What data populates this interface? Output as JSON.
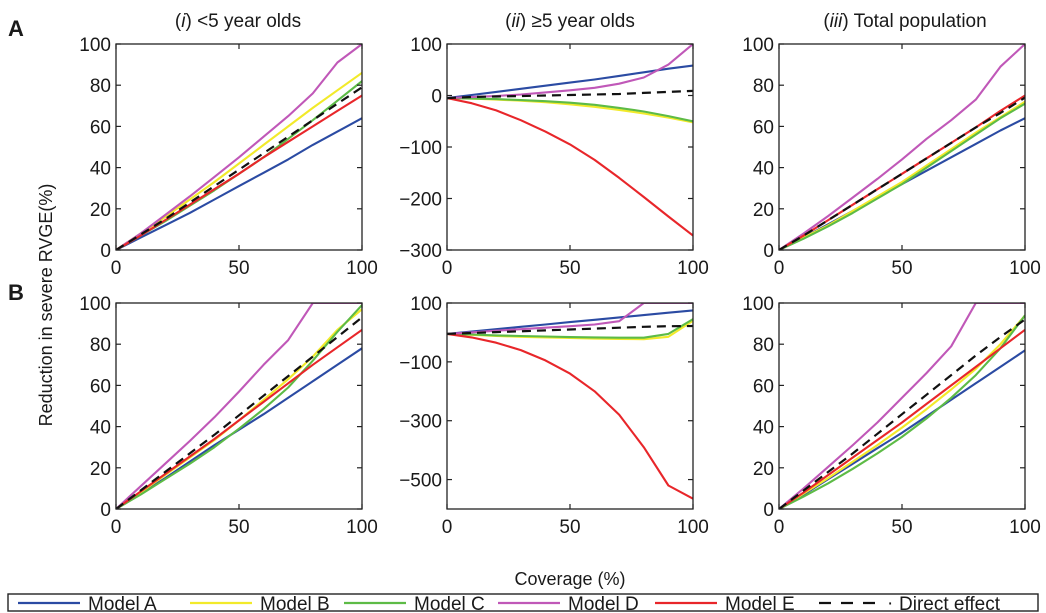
{
  "figure": {
    "row_labels": [
      "A",
      "B"
    ],
    "column_titles": [
      {
        "roman": "i",
        "text": "<5 year olds"
      },
      {
        "roman": "ii",
        "text": "≥5 year olds"
      },
      {
        "roman": "iii",
        "text": "Total population"
      }
    ],
    "ylabel": "Reduction in severe RVGE(%)",
    "xlabel": "Coverage (%)"
  },
  "legend": {
    "items": [
      {
        "label": "Model A",
        "color": "#2B4BA3",
        "dash": "solid"
      },
      {
        "label": "Model B",
        "color": "#F2EA2A",
        "dash": "solid"
      },
      {
        "label": "Model C",
        "color": "#5DBB46",
        "dash": "solid"
      },
      {
        "label": "Model D",
        "color": "#C058B8",
        "dash": "solid"
      },
      {
        "label": "Model E",
        "color": "#E8262A",
        "dash": "solid"
      },
      {
        "label": "Direct effect",
        "color": "#111111",
        "dash": "dashed"
      }
    ]
  },
  "chart_data": [
    {
      "type": "line",
      "row": "A",
      "column": "i",
      "x": [
        0,
        10,
        20,
        30,
        40,
        50,
        60,
        70,
        80,
        90,
        100
      ],
      "xlim": [
        0,
        100
      ],
      "xticks": [
        0,
        50,
        100
      ],
      "ylim": [
        0,
        100
      ],
      "yticks": [
        0,
        20,
        40,
        60,
        80,
        100
      ],
      "series": [
        {
          "name": "Model A",
          "values": [
            0,
            6,
            12,
            18,
            24.5,
            31,
            37.5,
            44,
            51,
            57.5,
            64
          ]
        },
        {
          "name": "Model B",
          "values": [
            0,
            8,
            16,
            24.5,
            33,
            42,
            51,
            60,
            69,
            77.5,
            86
          ]
        },
        {
          "name": "Model C",
          "values": [
            0,
            7,
            14,
            21.5,
            29,
            37,
            45,
            54,
            63,
            72.5,
            82
          ]
        },
        {
          "name": "Model D",
          "values": [
            0,
            8,
            17,
            26,
            35.5,
            45,
            55,
            65,
            76,
            91,
            100
          ]
        },
        {
          "name": "Model E",
          "values": [
            0,
            7,
            14.5,
            22,
            29.5,
            37,
            45,
            52.5,
            60,
            67.5,
            75
          ]
        },
        {
          "name": "Direct effect",
          "values": [
            0,
            7.5,
            15,
            23,
            31,
            39,
            47,
            55,
            63,
            71,
            79
          ]
        }
      ]
    },
    {
      "type": "line",
      "row": "A",
      "column": "ii",
      "x": [
        0,
        10,
        20,
        30,
        40,
        50,
        60,
        70,
        80,
        90,
        100
      ],
      "xlim": [
        0,
        100
      ],
      "xticks": [
        0,
        50,
        100
      ],
      "ylim": [
        -300,
        100
      ],
      "yticks": [
        -300,
        -200,
        -100,
        0,
        100
      ],
      "series": [
        {
          "name": "Model A",
          "values": [
            -5,
            1,
            7,
            13,
            19,
            25,
            31,
            38,
            45,
            52,
            58
          ]
        },
        {
          "name": "Model B",
          "values": [
            -5,
            -6,
            -8,
            -10,
            -13,
            -17,
            -22,
            -28,
            -35,
            -43,
            -52
          ]
        },
        {
          "name": "Model C",
          "values": [
            -5,
            -6,
            -7,
            -9,
            -11,
            -14,
            -18,
            -24,
            -31,
            -40,
            -50
          ]
        },
        {
          "name": "Model D",
          "values": [
            -5,
            -3,
            -1,
            2,
            6,
            10,
            15,
            23,
            35,
            60,
            100
          ]
        },
        {
          "name": "Model E",
          "values": [
            -5,
            -15,
            -29,
            -48,
            -70,
            -95,
            -125,
            -160,
            -197,
            -235,
            -272
          ]
        },
        {
          "name": "Direct effect",
          "values": [
            -5,
            -3,
            -2,
            -1,
            0,
            1,
            2,
            3,
            5,
            7,
            9
          ]
        }
      ]
    },
    {
      "type": "line",
      "row": "A",
      "column": "iii",
      "x": [
        0,
        10,
        20,
        30,
        40,
        50,
        60,
        70,
        80,
        90,
        100
      ],
      "xlim": [
        0,
        100
      ],
      "xticks": [
        0,
        50,
        100
      ],
      "ylim": [
        0,
        100
      ],
      "yticks": [
        0,
        20,
        40,
        60,
        80,
        100
      ],
      "series": [
        {
          "name": "Model A",
          "values": [
            0,
            6,
            12.5,
            19,
            25.5,
            32,
            38.5,
            45,
            51.5,
            58,
            64
          ]
        },
        {
          "name": "Model B",
          "values": [
            0,
            6,
            12,
            19,
            26,
            33,
            41,
            49,
            57,
            64.5,
            72
          ]
        },
        {
          "name": "Model C",
          "values": [
            0,
            5.5,
            11.5,
            18,
            25,
            32,
            40,
            48,
            56,
            64,
            71
          ]
        },
        {
          "name": "Model D",
          "values": [
            0,
            8,
            16.5,
            25.5,
            34.5,
            44,
            54,
            63,
            73,
            89,
            100
          ]
        },
        {
          "name": "Model E",
          "values": [
            0,
            7,
            14.5,
            22,
            29.5,
            37,
            44.5,
            52,
            59.5,
            67.5,
            75
          ]
        },
        {
          "name": "Direct effect",
          "values": [
            0,
            7,
            14.5,
            22,
            29.5,
            37,
            44.5,
            52,
            59.5,
            66.5,
            74
          ]
        }
      ]
    },
    {
      "type": "line",
      "row": "B",
      "column": "i",
      "x": [
        0,
        10,
        20,
        30,
        40,
        50,
        60,
        70,
        80,
        90,
        100
      ],
      "xlim": [
        0,
        100
      ],
      "xticks": [
        0,
        50,
        100
      ],
      "ylim": [
        0,
        100
      ],
      "yticks": [
        0,
        20,
        40,
        60,
        80,
        100
      ],
      "series": [
        {
          "name": "Model A",
          "values": [
            0,
            7.5,
            15,
            23,
            31,
            38.5,
            46,
            54,
            62,
            70,
            78
          ]
        },
        {
          "name": "Model B",
          "values": [
            0,
            8,
            16.5,
            25,
            33.5,
            43,
            53,
            63,
            74,
            87,
            97
          ]
        },
        {
          "name": "Model C",
          "values": [
            0,
            7,
            14.5,
            22,
            30,
            39,
            48.5,
            59,
            72,
            86,
            99
          ]
        },
        {
          "name": "Model D",
          "values": [
            0,
            11,
            22,
            33,
            44.5,
            57,
            70,
            82,
            100,
            100,
            100
          ]
        },
        {
          "name": "Model E",
          "values": [
            0,
            8.5,
            17,
            25.5,
            34,
            43,
            52,
            61,
            70,
            78.5,
            87
          ]
        },
        {
          "name": "Direct effect",
          "values": [
            0,
            9,
            18,
            27,
            36,
            45.5,
            55,
            64.5,
            74,
            83.5,
            93
          ]
        }
      ]
    },
    {
      "type": "line",
      "row": "B",
      "column": "ii",
      "x": [
        0,
        10,
        20,
        30,
        40,
        50,
        60,
        70,
        80,
        90,
        100
      ],
      "xlim": [
        0,
        100
      ],
      "xticks": [
        0,
        50,
        100
      ],
      "ylim": [
        -600,
        100
      ],
      "yticks": [
        -500,
        -300,
        -100,
        100
      ],
      "series": [
        {
          "name": "Model A",
          "values": [
            -5,
            3,
            11,
            19,
            27,
            35,
            43,
            51,
            59,
            67,
            75
          ]
        },
        {
          "name": "Model B",
          "values": [
            -5,
            -8,
            -12,
            -15,
            -17,
            -19,
            -21,
            -22,
            -23,
            -15,
            40
          ]
        },
        {
          "name": "Model C",
          "values": [
            -5,
            -7,
            -10,
            -12,
            -14,
            -16,
            -17,
            -18,
            -18,
            -5,
            45
          ]
        },
        {
          "name": "Model D",
          "values": [
            -5,
            0,
            6,
            11,
            16,
            21,
            27,
            38,
            100,
            100,
            100
          ]
        },
        {
          "name": "Model E",
          "values": [
            -5,
            -17,
            -35,
            -60,
            -95,
            -140,
            -200,
            -280,
            -390,
            -520,
            -565
          ]
        },
        {
          "name": "Direct effect",
          "values": [
            -5,
            -2,
            1,
            4,
            7,
            10,
            13,
            16,
            19,
            21,
            22
          ]
        }
      ]
    },
    {
      "type": "line",
      "row": "B",
      "column": "iii",
      "x": [
        0,
        10,
        20,
        30,
        40,
        50,
        60,
        70,
        80,
        90,
        100
      ],
      "xlim": [
        0,
        100
      ],
      "xticks": [
        0,
        50,
        100
      ],
      "ylim": [
        0,
        100
      ],
      "yticks": [
        0,
        20,
        40,
        60,
        80,
        100
      ],
      "series": [
        {
          "name": "Model A",
          "values": [
            0,
            7,
            14.5,
            22,
            29.5,
            37,
            45,
            53,
            61,
            69,
            77
          ]
        },
        {
          "name": "Model B",
          "values": [
            0,
            7.5,
            15,
            23,
            31,
            39.5,
            48.5,
            58,
            68,
            80,
            94
          ]
        },
        {
          "name": "Model C",
          "values": [
            0,
            6,
            12.5,
            19.5,
            27,
            35,
            44,
            54,
            65,
            78,
            94
          ]
        },
        {
          "name": "Model D",
          "values": [
            0,
            10,
            20.5,
            31,
            42,
            54,
            66,
            79,
            100,
            100,
            100
          ]
        },
        {
          "name": "Model E",
          "values": [
            0,
            8,
            16.5,
            25,
            33.5,
            42,
            51,
            60,
            69,
            78,
            87
          ]
        },
        {
          "name": "Direct effect",
          "values": [
            0,
            9,
            18,
            27,
            36.5,
            46,
            55.5,
            65,
            74.5,
            83.5,
            92
          ]
        }
      ]
    }
  ]
}
